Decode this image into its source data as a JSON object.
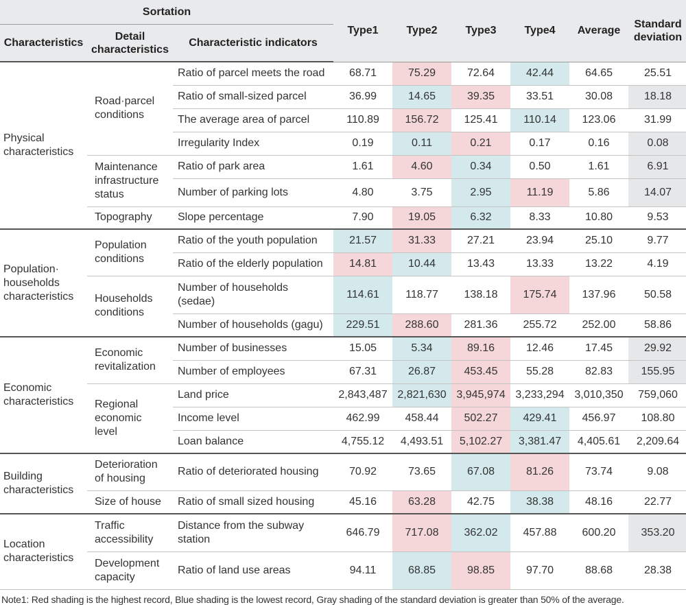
{
  "table": {
    "header": {
      "sortation": "Sortation",
      "characteristics": "Characteristics",
      "detail_line1": "Detail",
      "detail_line2": "characteristics",
      "indicators": "Characteristic indicators",
      "type1": "Type1",
      "type2": "Type2",
      "type3": "Type3",
      "type4": "Type4",
      "average": "Average",
      "sd_line1": "Standard",
      "sd_line2": "deviation"
    },
    "groups": {
      "physical": [
        "Physical",
        "characteristics"
      ],
      "population": [
        "Population·",
        "households",
        "characteristics"
      ],
      "economic": [
        "Economic",
        "characteristics"
      ],
      "building": [
        "Building",
        "characteristics"
      ],
      "location": [
        "Location",
        "characteristics"
      ]
    },
    "details": {
      "road_parcel": [
        "Road·parcel",
        "conditions"
      ],
      "maintenance": [
        "Maintenance",
        "infrastructure",
        "status"
      ],
      "topography": [
        "Topography"
      ],
      "population_cond": [
        "Population",
        "conditions"
      ],
      "households_cond": [
        "Households",
        "conditions"
      ],
      "econ_revital": [
        "Economic",
        "revitalization"
      ],
      "regional_econ": [
        "Regional",
        "economic",
        "level"
      ],
      "deterioration": [
        "Deterioration",
        "of housing"
      ],
      "size_house": [
        "Size of house"
      ],
      "traffic": [
        "Traffic",
        "accessibility"
      ],
      "development": [
        "Development",
        "capacity"
      ]
    },
    "rows": [
      {
        "indicator": "Ratio of parcel meets the road",
        "values": [
          "68.71",
          "75.29",
          "72.64",
          "42.44",
          "64.65",
          "25.51"
        ]
      },
      {
        "indicator": "Ratio of small-sized parcel",
        "values": [
          "36.99",
          "14.65",
          "39.35",
          "33.51",
          "30.08",
          "18.18"
        ]
      },
      {
        "indicator": "The average area of parcel",
        "values": [
          "110.89",
          "156.72",
          "125.41",
          "110.14",
          "123.06",
          "31.99"
        ]
      },
      {
        "indicator": "Irregularity Index",
        "values": [
          "0.19",
          "0.11",
          "0.21",
          "0.17",
          "0.16",
          "0.08"
        ]
      },
      {
        "indicator": "Ratio of park area",
        "values": [
          "1.61",
          "4.60",
          "0.34",
          "0.50",
          "1.61",
          "6.91"
        ]
      },
      {
        "indicator": "Number of parking lots",
        "values": [
          "4.80",
          "3.75",
          "2.95",
          "11.19",
          "5.86",
          "14.07"
        ]
      },
      {
        "indicator": "Slope percentage",
        "values": [
          "7.90",
          "19.05",
          "6.32",
          "8.33",
          "10.80",
          "9.53"
        ]
      },
      {
        "indicator": "Ratio of the youth population",
        "values": [
          "21.57",
          "31.33",
          "27.21",
          "23.94",
          "25.10",
          "9.77"
        ]
      },
      {
        "indicator": "Ratio of the elderly population",
        "values": [
          "14.81",
          "10.44",
          "13.43",
          "13.33",
          "13.22",
          "4.19"
        ]
      },
      {
        "indicator": "Number of households (sedae)",
        "indicator_lines": [
          "Number of households",
          "(sedae)"
        ],
        "values": [
          "114.61",
          "118.77",
          "138.18",
          "175.74",
          "137.96",
          "50.58"
        ]
      },
      {
        "indicator": "Number of households (gagu)",
        "values": [
          "229.51",
          "288.60",
          "281.36",
          "255.72",
          "252.00",
          "58.86"
        ]
      },
      {
        "indicator": "Number of businesses",
        "values": [
          "15.05",
          "5.34",
          "89.16",
          "12.46",
          "17.45",
          "29.92"
        ]
      },
      {
        "indicator": "Number of employees",
        "values": [
          "67.31",
          "26.87",
          "453.45",
          "55.28",
          "82.83",
          "155.95"
        ]
      },
      {
        "indicator": "Land price",
        "values": [
          "2,843,487",
          "2,821,630",
          "3,945,974",
          "3,233,294",
          "3,010,350",
          "759,060"
        ]
      },
      {
        "indicator": "Income level",
        "values": [
          "462.99",
          "458.44",
          "502.27",
          "429.41",
          "456.97",
          "108.80"
        ]
      },
      {
        "indicator": "Loan balance",
        "values": [
          "4,755.12",
          "4,493.51",
          "5,102.27",
          "3,381.47",
          "4,405.61",
          "2,209.64"
        ]
      },
      {
        "indicator": "Ratio of deteriorated housing",
        "values": [
          "70.92",
          "73.65",
          "67.08",
          "81.26",
          "73.74",
          "9.08"
        ]
      },
      {
        "indicator": "Ratio of small sized housing",
        "values": [
          "45.16",
          "63.28",
          "42.75",
          "38.38",
          "48.16",
          "22.77"
        ]
      },
      {
        "indicator": "Distance from the subway station",
        "indicator_lines": [
          "Distance from the subway",
          "station"
        ],
        "values": [
          "646.79",
          "717.08",
          "362.02",
          "457.88",
          "600.20",
          "353.20"
        ]
      },
      {
        "indicator": "Ratio of land use areas",
        "values": [
          "94.11",
          "68.85",
          "98.85",
          "97.70",
          "88.68",
          "28.38"
        ]
      }
    ],
    "shading_colors": {
      "highest": "#f5d7da",
      "lowest": "#d3e9ec",
      "sd_gt_half_average": "#e6e7e9"
    }
  },
  "note": "Note1: Red shading is the highest record, Blue shading is the lowest record, Gray shading of the standard deviation is greater than 50% of the average."
}
